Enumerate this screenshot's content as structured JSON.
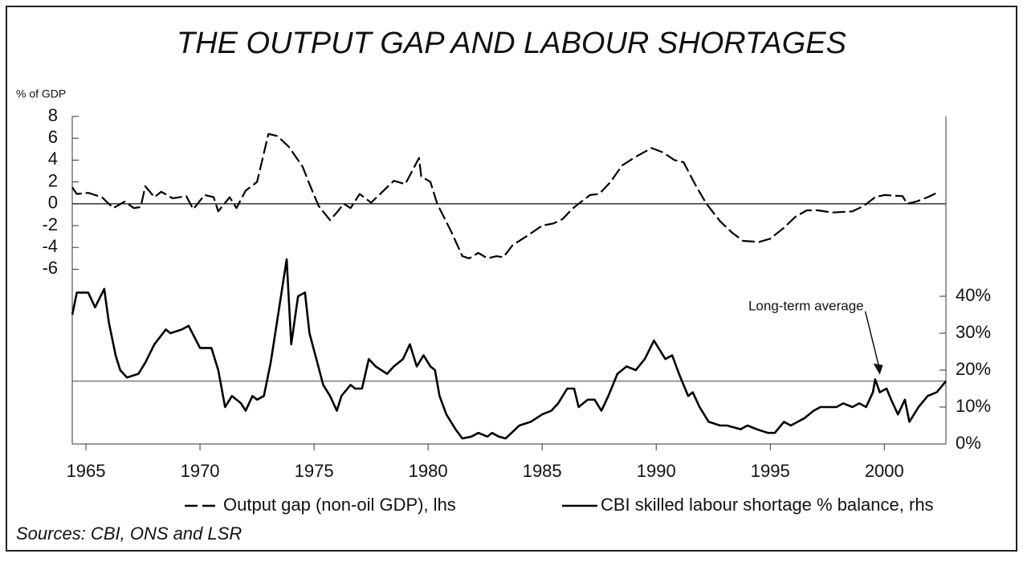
{
  "chart_data": {
    "type": "line",
    "title": "THE OUTPUT GAP AND LABOUR SHORTAGES",
    "y_label": "% of GDP",
    "source": "Sources: CBI, ONS and LSR",
    "xlim": [
      1964.4,
      2002.7
    ],
    "xticks": [
      1965,
      1970,
      1975,
      1980,
      1985,
      1990,
      1995,
      2000
    ],
    "ylim": [
      -22,
      8
    ],
    "yticks": [
      -6,
      -4,
      -2,
      0,
      2,
      4,
      6,
      8
    ],
    "y2lim": [
      0,
      88.7
    ],
    "y2ticks": [
      {
        "value": 0,
        "label": "0%"
      },
      {
        "value": 10,
        "label": "10%"
      },
      {
        "value": 20,
        "label": "20%"
      },
      {
        "value": 30,
        "label": "30%"
      },
      {
        "value": 40,
        "label": "40%"
      }
    ],
    "zero_line": true,
    "reference_line": {
      "value": 17,
      "axis": "y2",
      "label": "Long-term average",
      "x": 1999.8
    },
    "series": [
      {
        "name": "Output gap (non-oil GDP), lhs",
        "color": "#000000",
        "dash": true,
        "axis": "y",
        "x": [
          1964.4,
          1964.6,
          1965.1,
          1965.7,
          1966.2,
          1966.7,
          1967.1,
          1967.4,
          1967.6,
          1968.0,
          1968.3,
          1968.8,
          1969.4,
          1969.7,
          1970.2,
          1970.6,
          1970.8,
          1971.3,
          1971.6,
          1972.0,
          1972.5,
          1973.0,
          1973.4,
          1973.9,
          1974.5,
          1974.8,
          1975.2,
          1975.7,
          1976.0,
          1976.3,
          1976.6,
          1977.0,
          1977.5,
          1978.0,
          1978.5,
          1979.0,
          1979.3,
          1979.6,
          1979.7,
          1980.1,
          1980.4,
          1981.0,
          1981.5,
          1981.8,
          1982.2,
          1982.6,
          1983.0,
          1983.3,
          1983.7,
          1984.3,
          1985.0,
          1985.5,
          1985.9,
          1986.3,
          1986.6,
          1987.1,
          1987.5,
          1988.0,
          1988.5,
          1989.1,
          1989.8,
          1990.3,
          1990.8,
          1991.2,
          1991.7,
          1992.2,
          1992.8,
          1993.3,
          1993.8,
          1994.5,
          1995.0,
          1995.6,
          1996.1,
          1996.6,
          1997.1,
          1997.7,
          1998.6,
          1999.1,
          1999.6,
          2000.0,
          2000.8,
          2001.0,
          2001.4,
          2001.9,
          2002.3
        ],
        "values": [
          1.5,
          0.9,
          1.0,
          0.6,
          -0.4,
          0.2,
          -0.4,
          -0.3,
          1.6,
          0.6,
          1.1,
          0.5,
          0.7,
          -0.5,
          0.8,
          0.6,
          -0.7,
          0.6,
          -0.4,
          1.2,
          2.0,
          6.4,
          6.2,
          5.2,
          3.4,
          1.8,
          -0.2,
          -1.5,
          -0.8,
          0.0,
          -0.4,
          0.9,
          0.1,
          1.1,
          2.1,
          1.8,
          3.0,
          4.2,
          2.5,
          2.0,
          0.0,
          -2.5,
          -4.8,
          -5.0,
          -4.5,
          -5.0,
          -4.8,
          -4.9,
          -3.8,
          -3.0,
          -2.0,
          -1.8,
          -1.4,
          -0.5,
          0.0,
          0.8,
          0.9,
          2.0,
          3.5,
          4.3,
          5.1,
          4.7,
          4.0,
          3.8,
          1.8,
          0.0,
          -1.6,
          -2.6,
          -3.4,
          -3.5,
          -3.2,
          -2.2,
          -1.2,
          -0.6,
          -0.6,
          -0.8,
          -0.7,
          -0.2,
          0.6,
          0.8,
          0.7,
          0.0,
          0.2,
          0.6,
          1.0
        ]
      },
      {
        "name": "CBI skilled labour shortage % balance, rhs",
        "color": "#000000",
        "dash": false,
        "axis": "y2",
        "x": [
          1964.4,
          1964.6,
          1965.1,
          1965.4,
          1965.8,
          1966.0,
          1966.3,
          1966.5,
          1966.8,
          1967.3,
          1967.6,
          1968.0,
          1968.5,
          1968.7,
          1969.2,
          1969.5,
          1970.0,
          1970.5,
          1970.8,
          1971.1,
          1971.4,
          1971.8,
          1972.0,
          1972.3,
          1972.5,
          1972.8,
          1973.1,
          1973.3,
          1973.6,
          1973.8,
          1974.0,
          1974.3,
          1974.6,
          1974.8,
          1975.1,
          1975.4,
          1975.7,
          1976.0,
          1976.2,
          1976.6,
          1976.8,
          1977.1,
          1977.4,
          1977.7,
          1978.2,
          1978.5,
          1978.9,
          1979.2,
          1979.5,
          1979.8,
          1980.1,
          1980.3,
          1980.5,
          1980.8,
          1981.2,
          1981.5,
          1981.9,
          1982.2,
          1982.6,
          1982.8,
          1983.1,
          1983.4,
          1984.0,
          1984.5,
          1985.0,
          1985.4,
          1985.7,
          1986.1,
          1986.4,
          1986.6,
          1987.0,
          1987.3,
          1987.6,
          1987.9,
          1988.3,
          1988.7,
          1989.1,
          1989.5,
          1989.9,
          1990.1,
          1990.4,
          1990.7,
          1991.0,
          1991.4,
          1991.6,
          1991.9,
          1992.3,
          1992.8,
          1993.1,
          1993.7,
          1994.0,
          1994.4,
          1994.9,
          1995.2,
          1995.6,
          1995.9,
          1996.2,
          1996.5,
          1996.9,
          1997.2,
          1997.6,
          1997.9,
          1998.2,
          1998.6,
          1998.9,
          1999.2,
          1999.5,
          1999.6,
          1999.8,
          2000.1,
          2000.3,
          2000.6,
          2000.9,
          2001.1,
          2001.5,
          2001.9,
          2002.3,
          2002.7
        ],
        "values": [
          35,
          41,
          41,
          37,
          42,
          33,
          24,
          20,
          18,
          19,
          22,
          27,
          31,
          30,
          31,
          32,
          26,
          26,
          20,
          10,
          13,
          11,
          9,
          13,
          12,
          13,
          22,
          30,
          42,
          50,
          27,
          40,
          41,
          30,
          23,
          16,
          13,
          9,
          13,
          16,
          15,
          15,
          23,
          21,
          19,
          21,
          23,
          27,
          21,
          24,
          21,
          20,
          13,
          8,
          4,
          1.5,
          2,
          3,
          2,
          3,
          2,
          1.5,
          5,
          6,
          8,
          9,
          11,
          15,
          15,
          10,
          12,
          12,
          9,
          13,
          19,
          21,
          20,
          23,
          28,
          26,
          23,
          24,
          19,
          13,
          14,
          10,
          6,
          5,
          5,
          4,
          5,
          4,
          3,
          3,
          6,
          5,
          6,
          7,
          9,
          10,
          10,
          10,
          11,
          10,
          11,
          10,
          14,
          17.5,
          14,
          15,
          12,
          8,
          12,
          6,
          10,
          13,
          14,
          17
        ]
      }
    ]
  }
}
